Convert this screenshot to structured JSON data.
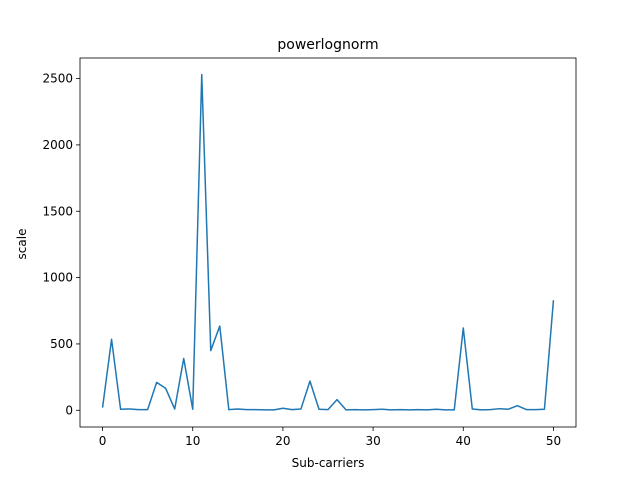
{
  "chart_data": {
    "type": "line",
    "title": "powerlognorm",
    "xlabel": "Sub-carriers",
    "ylabel": "scale",
    "xlim": [
      -2.5,
      52.5
    ],
    "ylim": [
      -126,
      2655
    ],
    "xticks": [
      0,
      10,
      20,
      30,
      40,
      50
    ],
    "yticks": [
      0,
      500,
      1000,
      1500,
      2000,
      2500
    ],
    "grid": false,
    "series": [
      {
        "color": "#1f77b4",
        "x": [
          0,
          1,
          2,
          3,
          4,
          5,
          6,
          7,
          8,
          9,
          10,
          11,
          12,
          13,
          14,
          15,
          16,
          17,
          18,
          19,
          20,
          21,
          22,
          23,
          24,
          25,
          26,
          27,
          28,
          29,
          30,
          31,
          32,
          33,
          34,
          35,
          36,
          37,
          38,
          39,
          40,
          41,
          42,
          43,
          44,
          45,
          46,
          47,
          48,
          49,
          50
        ],
        "y": [
          20,
          535,
          8,
          10,
          5,
          5,
          210,
          165,
          10,
          390,
          8,
          2530,
          450,
          635,
          5,
          10,
          5,
          5,
          3,
          3,
          15,
          5,
          10,
          220,
          8,
          5,
          80,
          3,
          5,
          3,
          5,
          8,
          3,
          5,
          3,
          5,
          3,
          8,
          3,
          3,
          620,
          10,
          3,
          5,
          12,
          8,
          35,
          5,
          5,
          8,
          830
        ]
      }
    ]
  }
}
